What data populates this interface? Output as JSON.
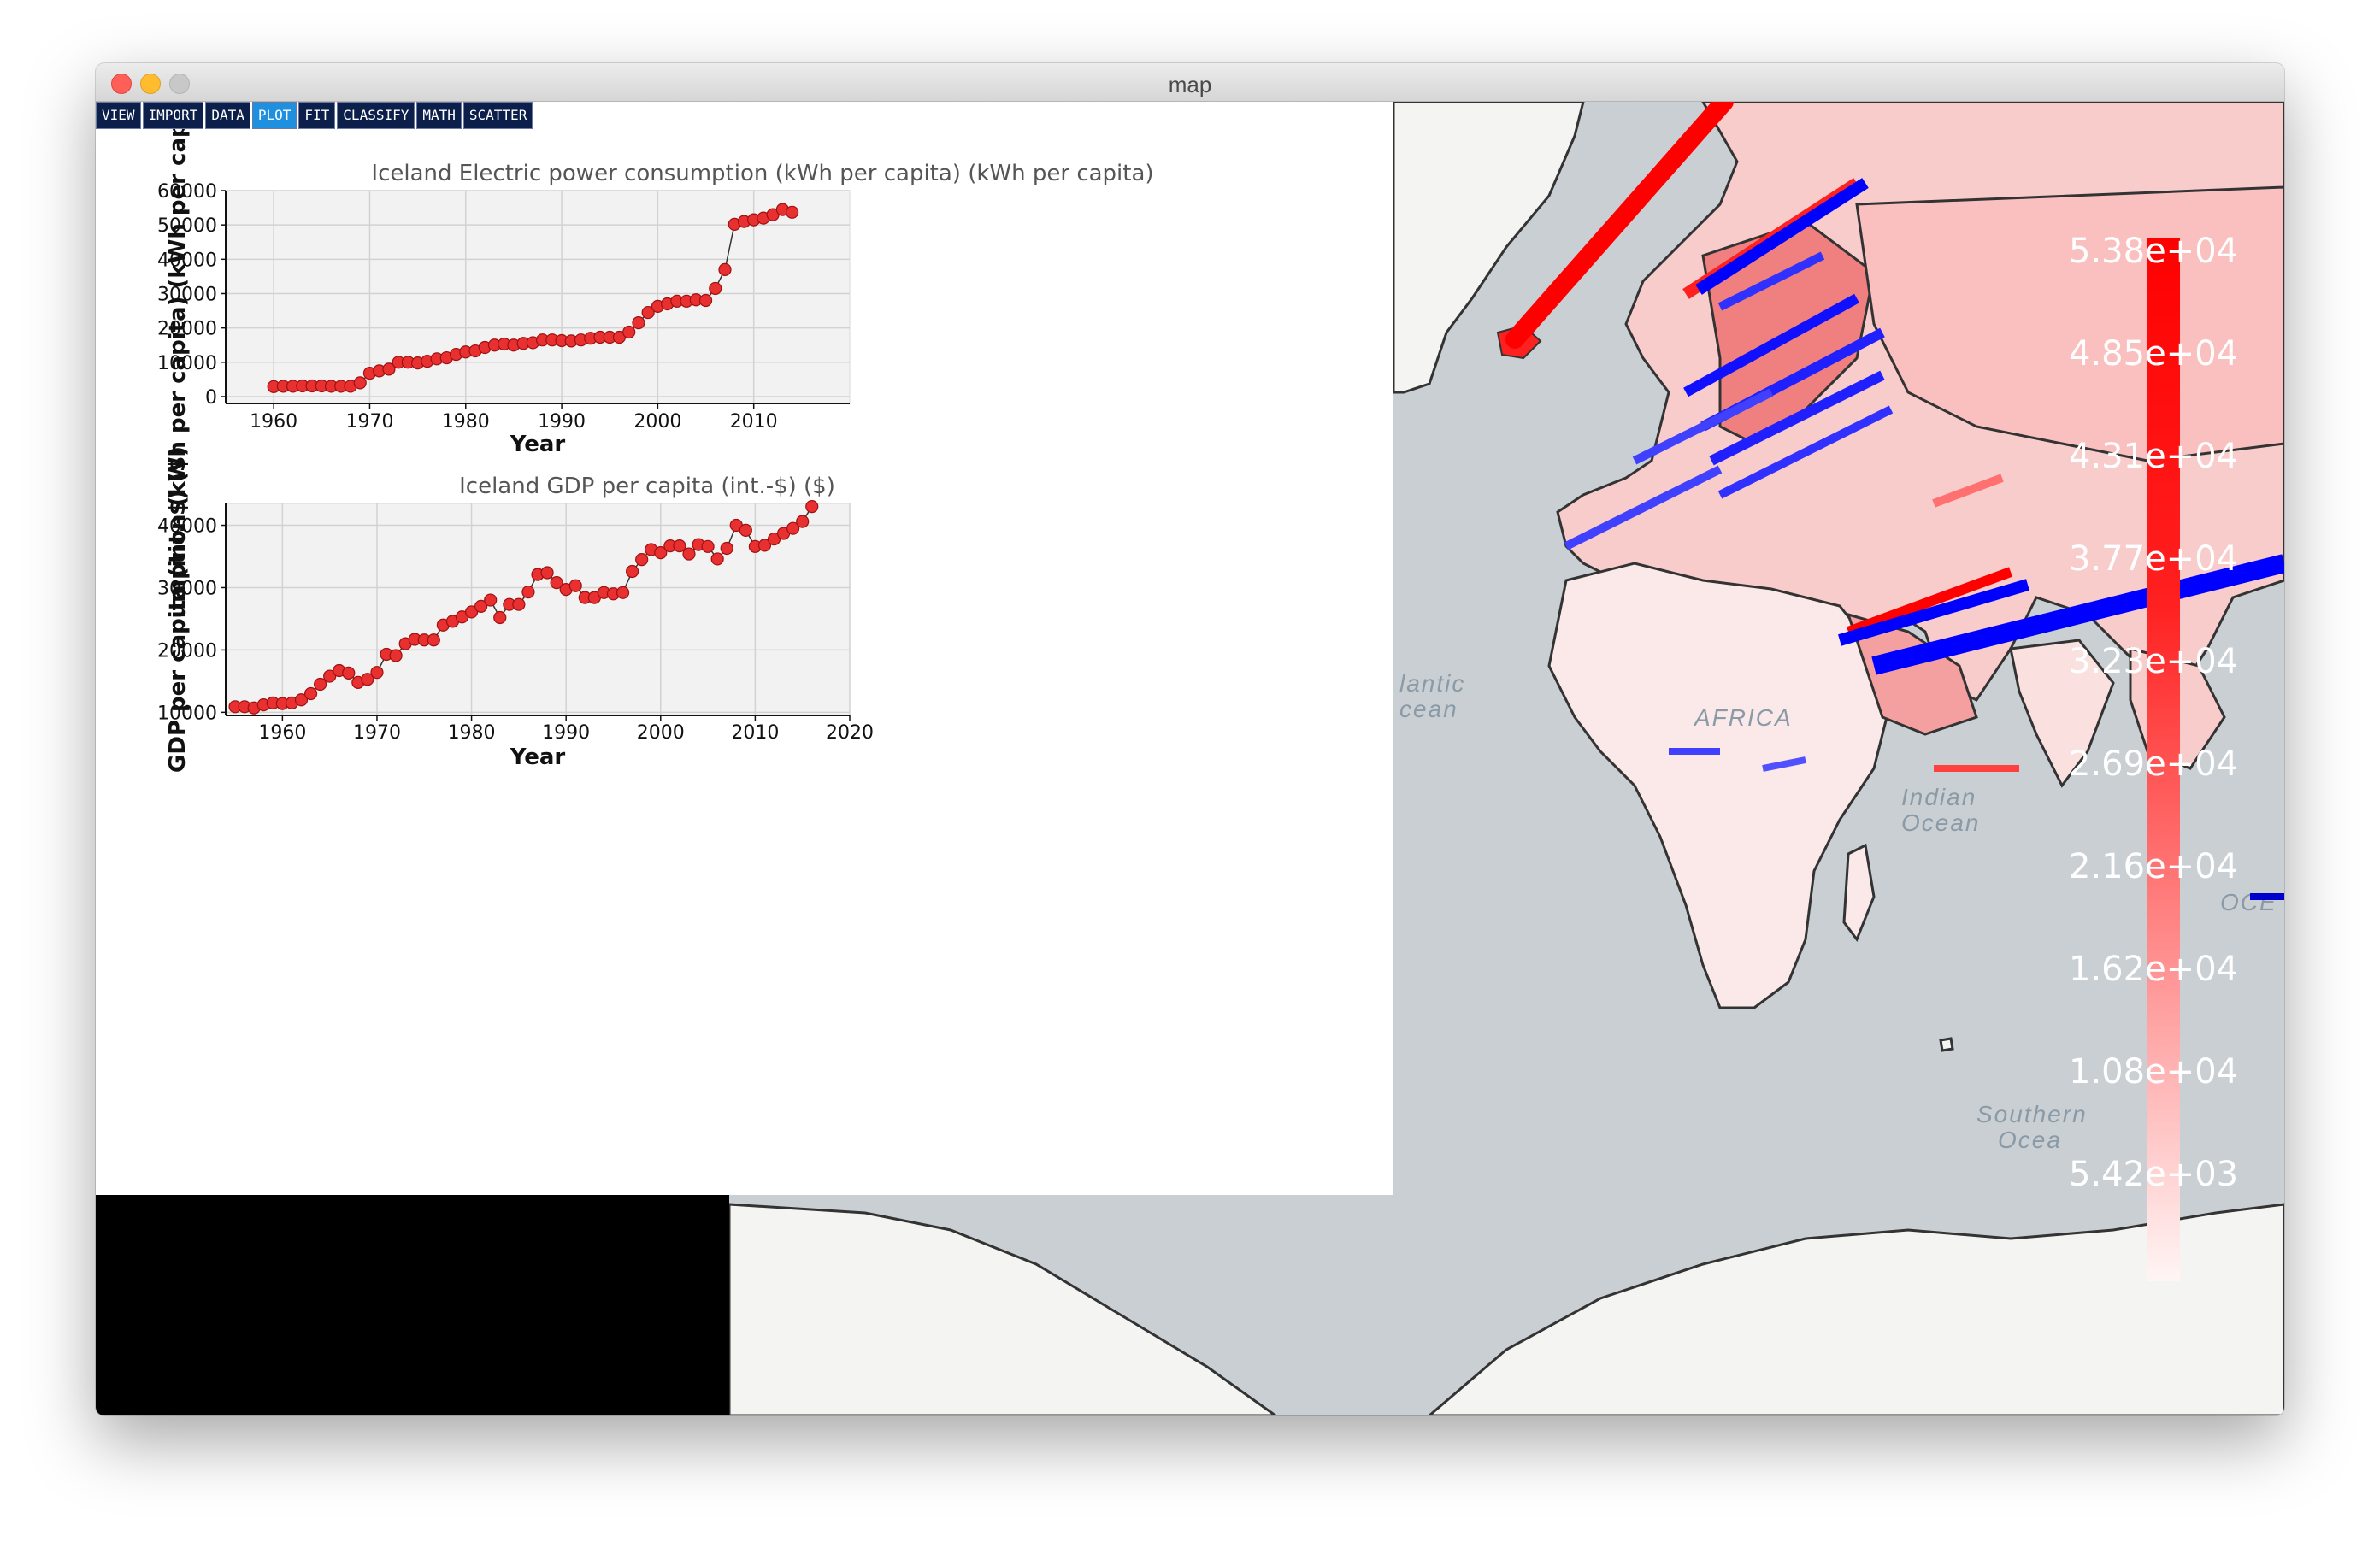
{
  "window": {
    "title": "map"
  },
  "menu": {
    "items": [
      {
        "label": "VIEW",
        "active": false
      },
      {
        "label": "IMPORT",
        "active": false
      },
      {
        "label": "DATA",
        "active": false
      },
      {
        "label": "PLOT",
        "active": true
      },
      {
        "label": "FIT",
        "active": false
      },
      {
        "label": "CLASSIFY",
        "active": false
      },
      {
        "label": "MATH",
        "active": false
      },
      {
        "label": "SCATTER",
        "active": false
      }
    ]
  },
  "map": {
    "ocean_labels": [
      "lantic",
      "cean",
      "Indian",
      "Ocean",
      "Southern",
      "Ocea",
      "OCE",
      "AFRICA"
    ],
    "colors": {
      "ocean": "#c9cfd2",
      "land": "#f4f4f2",
      "high": "#ff0000",
      "low": "#0000ff"
    }
  },
  "legend": {
    "labels": [
      "5.38e+04",
      "4.85e+04",
      "4.31e+04",
      "3.77e+04",
      "3.23e+04",
      "2.69e+04",
      "2.16e+04",
      "1.62e+04",
      "1.08e+04",
      "5.42e+03"
    ]
  },
  "chart_data": [
    {
      "type": "line",
      "title": "Iceland Electric power consumption (kWh per capita) (kWh per capita)",
      "xlabel": "Year",
      "ylabel": "umption (kWh per capita) (kWh per capita)",
      "xlim": [
        1955,
        2020
      ],
      "ylim": [
        -2000,
        60000
      ],
      "xticks": [
        1960,
        1970,
        1980,
        1990,
        2000,
        2010
      ],
      "yticks": [
        0,
        10000,
        20000,
        30000,
        40000,
        50000,
        60000
      ],
      "grid": true,
      "x": [
        1960,
        1961,
        1962,
        1963,
        1964,
        1965,
        1966,
        1967,
        1968,
        1969,
        1970,
        1971,
        1972,
        1973,
        1974,
        1975,
        1976,
        1977,
        1978,
        1979,
        1980,
        1981,
        1982,
        1983,
        1984,
        1985,
        1986,
        1987,
        1988,
        1989,
        1990,
        1991,
        1992,
        1993,
        1994,
        1995,
        1996,
        1997,
        1998,
        1999,
        2000,
        2001,
        2002,
        2003,
        2004,
        2005,
        2006,
        2007,
        2008,
        2009,
        2010,
        2011,
        2012,
        2013,
        2014
      ],
      "y": [
        2900,
        3000,
        3000,
        3100,
        3100,
        3100,
        3000,
        3000,
        3000,
        4000,
        6800,
        7500,
        8000,
        10000,
        10000,
        9800,
        10300,
        11000,
        11300,
        12300,
        13000,
        13300,
        14300,
        15000,
        15300,
        15000,
        15500,
        15700,
        16500,
        16500,
        16300,
        16200,
        16500,
        17000,
        17300,
        17300,
        17300,
        18800,
        21500,
        24500,
        26300,
        27000,
        27800,
        27800,
        28200,
        28000,
        31500,
        37000,
        50200,
        51000,
        51500,
        52000,
        53000,
        54500,
        53700
      ]
    },
    {
      "type": "line",
      "title": "Iceland GDP per capita (int.-$) ($)",
      "xlabel": "Year",
      "ylabel": "GDP per capita (int.-$) ($)",
      "xlim": [
        1954,
        2020
      ],
      "ylim": [
        9500,
        43500
      ],
      "xticks": [
        1960,
        1970,
        1980,
        1990,
        2000,
        2010,
        2020
      ],
      "yticks": [
        10000,
        20000,
        30000,
        40000
      ],
      "grid": true,
      "x": [
        1955,
        1956,
        1957,
        1958,
        1959,
        1960,
        1961,
        1962,
        1963,
        1964,
        1965,
        1966,
        1967,
        1968,
        1969,
        1970,
        1971,
        1972,
        1973,
        1974,
        1975,
        1976,
        1977,
        1978,
        1979,
        1980,
        1981,
        1982,
        1983,
        1984,
        1985,
        1986,
        1987,
        1988,
        1989,
        1990,
        1991,
        1992,
        1993,
        1994,
        1995,
        1996,
        1997,
        1998,
        1999,
        2000,
        2001,
        2002,
        2003,
        2004,
        2005,
        2006,
        2007,
        2008,
        2009,
        2010,
        2011,
        2012,
        2013,
        2014,
        2015,
        2016
      ],
      "y": [
        10900,
        10900,
        10700,
        11200,
        11500,
        11400,
        11500,
        12000,
        13000,
        14500,
        15800,
        16700,
        16300,
        14800,
        15300,
        16400,
        19300,
        19100,
        21000,
        21700,
        21600,
        21600,
        24000,
        24600,
        25300,
        26100,
        27000,
        28000,
        25200,
        27300,
        27300,
        29300,
        32100,
        32400,
        30800,
        29700,
        30300,
        28400,
        28400,
        29200,
        29000,
        29200,
        32600,
        34500,
        36100,
        35600,
        36700,
        36700,
        35400,
        36900,
        36600,
        34600,
        36300,
        40000,
        39200,
        36600,
        36800,
        37800,
        38700,
        39500,
        40600,
        43000
      ]
    }
  ]
}
